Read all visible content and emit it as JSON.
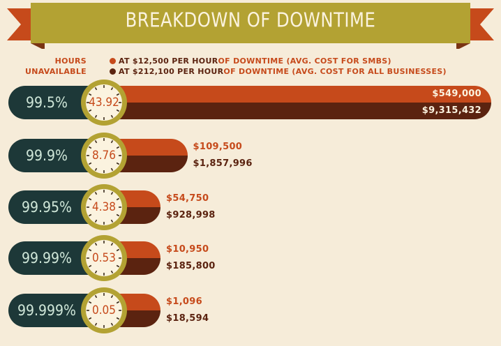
{
  "title": "BREAKDOWN OF DOWNTIME",
  "legend": {
    "left_line1": "HOURS",
    "left_line2": "UNAVAILABLE",
    "items": [
      {
        "highlight": "AT $12,500 PER HOUR",
        "rest": " OF DOWNTIME (AVG. COST FOR SMBS)",
        "color": "#c64a1b"
      },
      {
        "highlight": "AT $212,100 PER HOUR",
        "rest": " OF DOWNTIME (AVG. COST FOR ALL BUSINESSES)",
        "color": "#5b2310"
      }
    ]
  },
  "colors": {
    "smb": "#c64a1b",
    "all": "#5b2310",
    "pill": "#1d3838",
    "clock_ring": "#b3a233",
    "banner": "#b3a233",
    "background": "#f6ecd9"
  },
  "chart_data": {
    "type": "bar",
    "categories": [
      "99.5%",
      "99.9%",
      "99.95%",
      "99.99%",
      "99.999%"
    ],
    "hours_unavailable": [
      "43.92",
      "8.76",
      "4.38",
      "0.53",
      "0.05"
    ],
    "series": [
      {
        "values": [
          549000,
          109500,
          54750,
          10950,
          1096
        ],
        "labels": [
          "$549,000",
          "$109,500",
          "$54,750",
          "$10,950",
          "$1,096"
        ]
      },
      {
        "values": [
          9315432,
          1857996,
          928998,
          185800,
          18594
        ],
        "labels": [
          "$9,315,432",
          "$1,857,996",
          "$928,998",
          "$185,800",
          "$18,594"
        ]
      }
    ]
  }
}
